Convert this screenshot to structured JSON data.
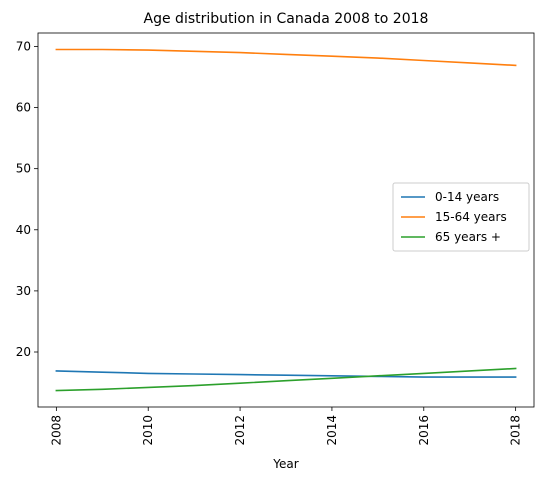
{
  "chart_data": {
    "type": "line",
    "title": "Age distribution in Canada 2008 to 2018",
    "xlabel": "Year",
    "ylabel": "",
    "x": [
      2008,
      2009,
      2010,
      2011,
      2012,
      2013,
      2014,
      2015,
      2016,
      2017,
      2018
    ],
    "xticks": [
      2008,
      2010,
      2012,
      2014,
      2016,
      2018
    ],
    "yticks": [
      20,
      30,
      40,
      50,
      60,
      70
    ],
    "xlim": [
      2007.6,
      2018.4
    ],
    "ylim": [
      11.0,
      72.2
    ],
    "grid": false,
    "legend_position": "center-right",
    "series": [
      {
        "name": "0-14 years",
        "color": "#1f77b4",
        "values": [
          16.9,
          16.7,
          16.5,
          16.4,
          16.3,
          16.2,
          16.1,
          16.0,
          15.9,
          15.9,
          15.9
        ]
      },
      {
        "name": "15-64 years",
        "color": "#ff7f0e",
        "values": [
          69.5,
          69.5,
          69.4,
          69.2,
          69.0,
          68.7,
          68.4,
          68.1,
          67.7,
          67.3,
          66.9
        ]
      },
      {
        "name": "65 years +",
        "color": "#2ca02c",
        "values": [
          13.7,
          13.9,
          14.2,
          14.5,
          14.9,
          15.3,
          15.7,
          16.1,
          16.5,
          16.9,
          17.3
        ]
      }
    ]
  }
}
